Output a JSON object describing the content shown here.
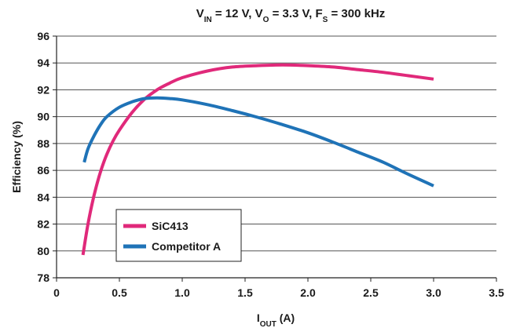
{
  "chart_data": {
    "type": "line",
    "title": {
      "parts": [
        {
          "text": "V"
        },
        {
          "text": "IN",
          "sub": true
        },
        {
          "text": " = 12 V, V"
        },
        {
          "text": "O",
          "sub": true
        },
        {
          "text": " = 3.3 V, F"
        },
        {
          "text": "S",
          "sub": true
        },
        {
          "text": " = 300 kHz"
        }
      ]
    },
    "xlabel": {
      "parts": [
        {
          "text": "I"
        },
        {
          "text": "OUT",
          "sub": true
        },
        {
          "text": " (A)"
        }
      ]
    },
    "ylabel": "Efficiency (%)",
    "xlim": [
      0,
      3.5
    ],
    "ylim": [
      78,
      96
    ],
    "xticks": [
      "0",
      "0.5",
      "1.0",
      "1.5",
      "2.0",
      "2.5",
      "3.0",
      "3.5"
    ],
    "yticks": [
      "78",
      "80",
      "82",
      "84",
      "86",
      "88",
      "90",
      "92",
      "94",
      "96"
    ],
    "grid": "horizontal",
    "legend_position": "bottom-left",
    "series": [
      {
        "name": "SiC413",
        "color": "#e0297a",
        "x": [
          0.21,
          0.25,
          0.3,
          0.35,
          0.4,
          0.45,
          0.5,
          0.6,
          0.7,
          0.8,
          0.9,
          1.0,
          1.2,
          1.4,
          1.6,
          1.8,
          2.0,
          2.2,
          2.4,
          2.6,
          2.8,
          3.0
        ],
        "y": [
          79.7,
          82.0,
          84.2,
          85.9,
          87.2,
          88.2,
          89.0,
          90.3,
          91.3,
          92.0,
          92.5,
          92.9,
          93.4,
          93.7,
          93.8,
          93.85,
          93.8,
          93.7,
          93.5,
          93.3,
          93.05,
          92.8
        ]
      },
      {
        "name": "Competitor A",
        "color": "#1f73b7",
        "x": [
          0.22,
          0.25,
          0.3,
          0.35,
          0.4,
          0.5,
          0.6,
          0.7,
          0.8,
          0.9,
          1.0,
          1.2,
          1.4,
          1.6,
          1.8,
          2.0,
          2.2,
          2.4,
          2.6,
          2.8,
          3.0
        ],
        "y": [
          86.6,
          87.6,
          88.6,
          89.4,
          90.0,
          90.7,
          91.1,
          91.35,
          91.4,
          91.35,
          91.25,
          90.9,
          90.45,
          89.95,
          89.4,
          88.8,
          88.1,
          87.35,
          86.6,
          85.7,
          84.85
        ]
      }
    ]
  }
}
